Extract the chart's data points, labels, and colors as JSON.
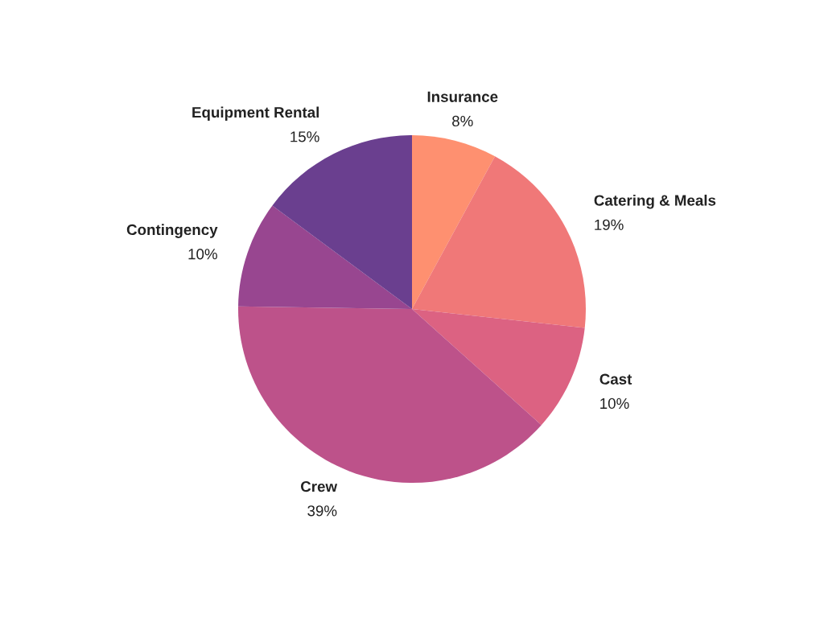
{
  "chart_data": {
    "type": "pie",
    "categories": [
      "Insurance",
      "Catering & Meals",
      "Cast",
      "Crew",
      "Contingency",
      "Equipment Rental"
    ],
    "values": [
      8,
      19,
      10,
      39,
      10,
      15
    ],
    "value_labels": [
      "8%",
      "19%",
      "10%",
      "39%",
      "10%",
      "15%"
    ],
    "colors": [
      "#fe9070",
      "#f07878",
      "#dc6282",
      "#bd528a",
      "#984690",
      "#6a3f8f"
    ],
    "legend": false
  }
}
